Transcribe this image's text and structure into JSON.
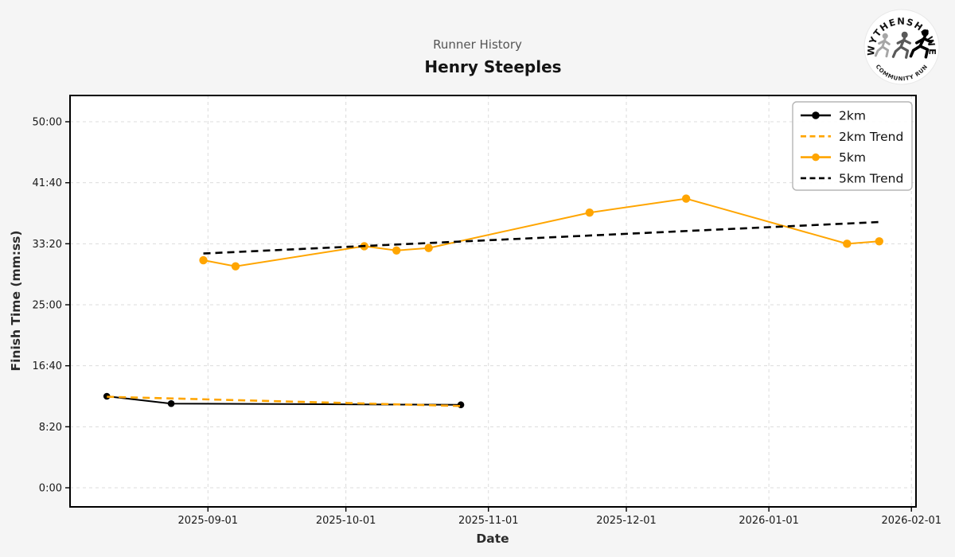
{
  "header": {
    "subtitle": "Runner History",
    "title": "Henry Steeples"
  },
  "logo": {
    "top_text": "WYTHENSHAWE",
    "bottom_text": "COMMUNITY RUN"
  },
  "chart_data": {
    "type": "line",
    "title": "Henry Steeples",
    "subtitle": "Runner History",
    "xlabel": "Date",
    "ylabel": "Finish Time (mm:ss)",
    "x_range": [
      "2025-08-02",
      "2026-02-02"
    ],
    "x_ticks": [
      "2025-09-01",
      "2025-10-01",
      "2025-11-01",
      "2025-12-01",
      "2026-01-01",
      "2026-02-01"
    ],
    "y_ticks": [
      "0:00",
      "8:20",
      "16:40",
      "25:00",
      "33:20",
      "41:40",
      "50:00"
    ],
    "y_range": [
      "0:00",
      "50:00"
    ],
    "grid": true,
    "legend_position": "upper right",
    "series": [
      {
        "name": "2km",
        "color": "#000000",
        "line": "solid",
        "marker": true,
        "points": [
          {
            "date": "2025-08-10",
            "time": "12:30"
          },
          {
            "date": "2025-08-24",
            "time": "11:30"
          },
          {
            "date": "2025-10-26",
            "time": "11:20"
          }
        ]
      },
      {
        "name": "2km Trend",
        "color": "#FFA500",
        "line": "dashed",
        "marker": false,
        "points": [
          {
            "date": "2025-08-10",
            "time": "12:26"
          },
          {
            "date": "2025-10-26",
            "time": "11:10"
          }
        ]
      },
      {
        "name": "5km",
        "color": "#FFA500",
        "line": "solid",
        "marker": true,
        "points": [
          {
            "date": "2025-08-31",
            "time": "31:05"
          },
          {
            "date": "2025-09-07",
            "time": "30:15"
          },
          {
            "date": "2025-10-05",
            "time": "33:00"
          },
          {
            "date": "2025-10-12",
            "time": "32:25"
          },
          {
            "date": "2025-10-19",
            "time": "32:45"
          },
          {
            "date": "2025-11-23",
            "time": "37:35"
          },
          {
            "date": "2025-12-14",
            "time": "39:30"
          },
          {
            "date": "2026-01-18",
            "time": "33:20"
          },
          {
            "date": "2026-01-25",
            "time": "33:40"
          }
        ]
      },
      {
        "name": "5km Trend",
        "color": "#000000",
        "line": "dashed",
        "marker": false,
        "points": [
          {
            "date": "2025-08-31",
            "time": "32:00"
          },
          {
            "date": "2026-01-25",
            "time": "36:18"
          }
        ]
      }
    ]
  }
}
